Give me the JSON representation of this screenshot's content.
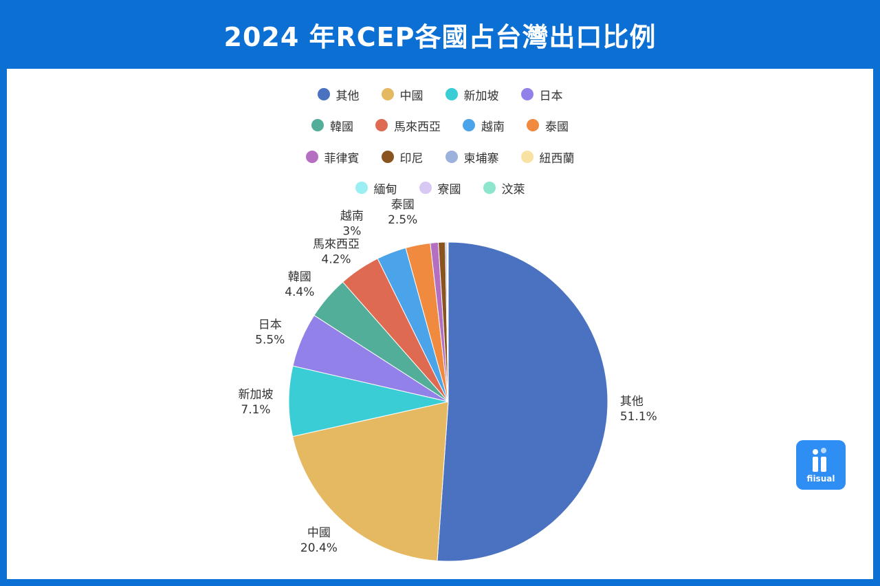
{
  "title": "2024 年RCEP各國占台灣出口比例",
  "logo_text": "fiisual",
  "chart_data": {
    "type": "pie",
    "title": "2024 年RCEP各國占台灣出口比例",
    "legend_placement": "top",
    "slices": [
      {
        "name": "其他",
        "value": 51.1,
        "label": "51.1%",
        "color": "#4a72c0"
      },
      {
        "name": "中國",
        "value": 20.4,
        "label": "20.4%",
        "color": "#e4b962"
      },
      {
        "name": "新加坡",
        "value": 7.1,
        "label": "7.1%",
        "color": "#3bcdd6"
      },
      {
        "name": "日本",
        "value": 5.5,
        "label": "5.5%",
        "color": "#9181e8"
      },
      {
        "name": "韓國",
        "value": 4.4,
        "label": "4.4%",
        "color": "#52ae98"
      },
      {
        "name": "馬來西亞",
        "value": 4.2,
        "label": "4.2%",
        "color": "#df6a52"
      },
      {
        "name": "越南",
        "value": 3.0,
        "label": "3%",
        "color": "#4ba3ea"
      },
      {
        "name": "泰國",
        "value": 2.5,
        "label": "2.5%",
        "color": "#f08a3e"
      },
      {
        "name": "菲律賓",
        "value": 0.8,
        "label": "",
        "color": "#b46fc0"
      },
      {
        "name": "印尼",
        "value": 0.7,
        "label": "",
        "color": "#8a5420"
      },
      {
        "name": "柬埔寨",
        "value": 0.15,
        "label": "",
        "color": "#9db1dd"
      },
      {
        "name": "紐西蘭",
        "value": 0.1,
        "label": "",
        "color": "#f9e1a3"
      },
      {
        "name": "緬甸",
        "value": 0.03,
        "label": "",
        "color": "#9beff3"
      },
      {
        "name": "寮國",
        "value": 0.01,
        "label": "",
        "color": "#d8c9f4"
      },
      {
        "name": "汶萊",
        "value": 0.01,
        "label": "",
        "color": "#8ee6cf"
      }
    ],
    "legend_rows": [
      [
        "其他",
        "中國",
        "新加坡",
        "日本"
      ],
      [
        "韓國",
        "馬來西亞",
        "越南",
        "泰國"
      ],
      [
        "菲律賓",
        "印尼",
        "柬埔寨",
        "紐西蘭"
      ],
      [
        "緬甸",
        "寮國",
        "汶萊"
      ]
    ]
  }
}
